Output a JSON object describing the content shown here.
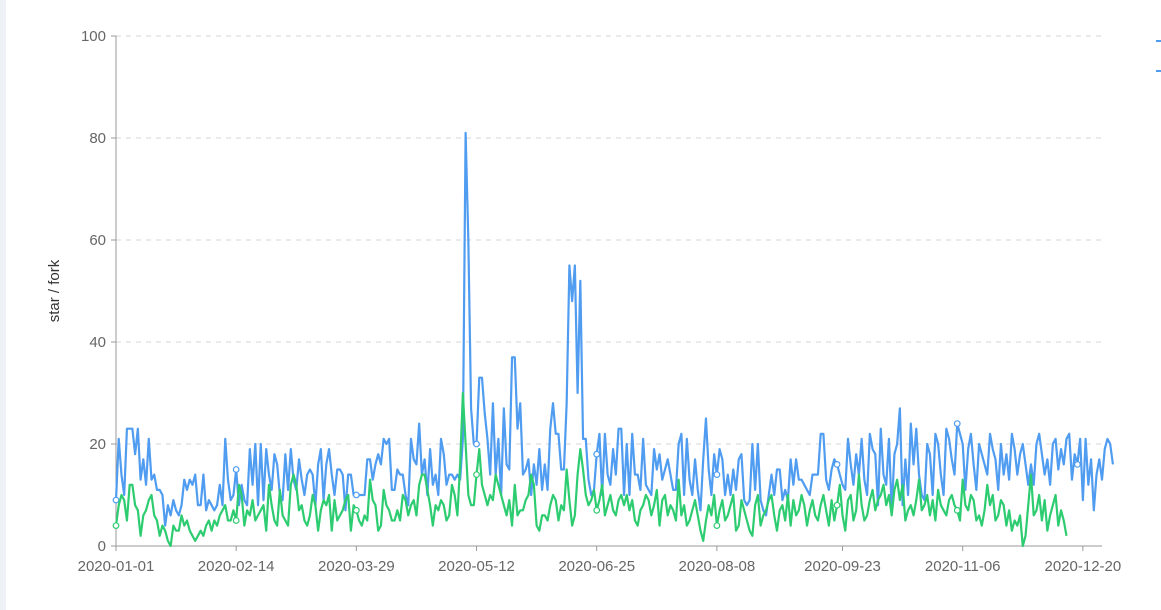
{
  "chart_data": {
    "type": "line",
    "title": "",
    "xlabel": "",
    "ylabel": "star / fork",
    "ylim": [
      0,
      100
    ],
    "yticks": [
      0,
      20,
      40,
      60,
      80,
      100
    ],
    "xticks": [
      "2020-01-01",
      "2020-02-14",
      "2020-03-29",
      "2020-05-12",
      "2020-06-25",
      "2020-08-08",
      "2020-09-23",
      "2020-11-06",
      "2020-12-20"
    ],
    "x_start": "2020-01-01",
    "x_end": "2020-12-27",
    "grid": "horizontal-dashed",
    "legend": "top-right",
    "colors": {
      "series1": "#4f9cf0",
      "series2": "#2ecc71"
    },
    "series": [
      {
        "color": "#4f9cf0",
        "values": [
          9,
          21,
          14,
          10,
          23,
          23,
          23,
          18,
          23,
          13,
          17,
          12,
          21,
          13,
          14,
          11,
          11,
          10,
          4,
          8,
          6,
          9,
          7,
          6,
          8,
          13,
          11,
          13,
          12,
          14,
          8,
          8,
          14,
          7,
          9,
          8,
          7,
          8,
          12,
          8,
          21,
          13,
          9,
          10,
          15,
          8,
          12,
          9,
          8,
          19,
          12,
          20,
          8,
          20,
          9,
          19,
          14,
          11,
          18,
          16,
          10,
          9,
          18,
          11,
          19,
          13,
          11,
          17,
          13,
          10,
          14,
          15,
          14,
          8,
          16,
          19,
          9,
          16,
          19,
          14,
          10,
          15,
          15,
          14,
          7,
          14,
          14,
          10,
          10,
          10,
          10,
          10,
          17,
          17,
          13,
          16,
          18,
          16,
          21,
          20,
          21,
          11,
          11,
          15,
          14,
          14,
          10,
          8,
          21,
          17,
          16,
          24,
          14,
          17,
          10,
          19,
          12,
          14,
          10,
          21,
          18,
          12,
          14,
          14,
          13,
          14,
          13,
          21,
          81,
          60,
          27,
          20,
          20,
          33,
          33,
          26,
          21,
          14,
          28,
          14,
          21,
          10,
          27,
          16,
          15,
          37,
          37,
          23,
          28,
          14,
          15,
          17,
          10,
          16,
          12,
          19,
          11,
          16,
          11,
          23,
          28,
          22,
          22,
          15,
          15,
          28,
          55,
          48,
          55,
          30,
          52,
          21,
          21,
          13,
          10,
          11,
          18,
          22,
          10,
          22,
          14,
          12,
          19,
          14,
          23,
          23,
          10,
          20,
          10,
          22,
          14,
          14,
          11,
          21,
          12,
          11,
          10,
          19,
          15,
          18,
          13,
          15,
          17,
          14,
          11,
          11,
          20,
          22,
          10,
          21,
          13,
          10,
          17,
          11,
          7,
          17,
          25,
          15,
          10,
          18,
          14,
          19,
          17,
          10,
          14,
          10,
          15,
          11,
          17,
          18,
          9,
          8,
          9,
          20,
          11,
          20,
          9,
          7,
          6,
          10,
          14,
          10,
          15,
          15,
          9,
          11,
          9,
          17,
          12,
          17,
          13,
          13,
          12,
          11,
          10,
          14,
          14,
          14,
          22,
          22,
          13,
          11,
          15,
          17,
          16,
          14,
          12,
          11,
          21,
          16,
          12,
          18,
          14,
          21,
          13,
          10,
          22,
          19,
          18,
          8,
          23,
          14,
          12,
          21,
          7,
          18,
          20,
          27,
          8,
          17,
          10,
          24,
          16,
          23,
          14,
          10,
          9,
          20,
          18,
          10,
          22,
          20,
          14,
          10,
          23,
          21,
          17,
          14,
          24,
          22,
          20,
          11,
          19,
          22,
          16,
          11,
          20,
          18,
          16,
          14,
          22,
          19,
          17,
          11,
          20,
          14,
          18,
          13,
          22,
          19,
          14,
          18,
          20,
          16,
          12,
          16,
          12,
          20,
          22,
          18,
          14,
          17,
          12,
          20,
          21,
          15,
          19,
          16,
          21,
          22,
          13,
          18,
          16,
          21,
          9,
          21,
          12,
          17,
          7,
          14,
          17,
          13,
          19,
          21,
          20,
          16
        ],
        "start": "2020-01-01"
      },
      {
        "color": "#2ecc71",
        "values": [
          4,
          8,
          10,
          9,
          5,
          12,
          12,
          8,
          7,
          2,
          6,
          7,
          9,
          10,
          6,
          5,
          2,
          4,
          3,
          1,
          0,
          4,
          3,
          3,
          6,
          4,
          5,
          3,
          2,
          1,
          2,
          3,
          2,
          4,
          5,
          3,
          5,
          4,
          6,
          7,
          8,
          5,
          5,
          7,
          5,
          12,
          10,
          4,
          7,
          6,
          9,
          5,
          6,
          7,
          8,
          3,
          12,
          8,
          5,
          4,
          11,
          6,
          5,
          4,
          12,
          14,
          12,
          7,
          8,
          5,
          4,
          6,
          10,
          8,
          3,
          7,
          9,
          8,
          10,
          3,
          9,
          5,
          6,
          7,
          9,
          10,
          3,
          8,
          7,
          5,
          4,
          6,
          5,
          13,
          9,
          8,
          3,
          4,
          11,
          8,
          7,
          5,
          5,
          7,
          5,
          10,
          9,
          6,
          8,
          9,
          6,
          12,
          14,
          14,
          11,
          8,
          4,
          8,
          7,
          9,
          8,
          5,
          6,
          12,
          10,
          6,
          16,
          30,
          20,
          10,
          8,
          8,
          14,
          19,
          12,
          10,
          8,
          10,
          9,
          14,
          12,
          10,
          8,
          6,
          9,
          4,
          12,
          6,
          7,
          7,
          9,
          10,
          14,
          12,
          4,
          3,
          6,
          6,
          5,
          8,
          10,
          9,
          5,
          8,
          7,
          15,
          9,
          4,
          6,
          14,
          19,
          15,
          10,
          8,
          9,
          11,
          7,
          9,
          12,
          6,
          8,
          10,
          7,
          6,
          9,
          10,
          8,
          10,
          7,
          9,
          5,
          4,
          7,
          8,
          10,
          9,
          6,
          8,
          11,
          4,
          9,
          10,
          6,
          8,
          7,
          5,
          13,
          6,
          8,
          4,
          5,
          7,
          9,
          6,
          3,
          1,
          5,
          8,
          6,
          10,
          4,
          7,
          9,
          5,
          6,
          8,
          10,
          3,
          4,
          9,
          7,
          5,
          3,
          2,
          8,
          10,
          4,
          6,
          7,
          9,
          10,
          6,
          3,
          7,
          8,
          5,
          10,
          4,
          9,
          6,
          7,
          10,
          8,
          4,
          7,
          9,
          6,
          5,
          8,
          10,
          7,
          4,
          9,
          5,
          8,
          12,
          6,
          3,
          9,
          10,
          5,
          7,
          14,
          8,
          5,
          6,
          9,
          11,
          7,
          9,
          10,
          12,
          8,
          10,
          6,
          11,
          13,
          9,
          12,
          5,
          7,
          8,
          6,
          9,
          13,
          7,
          8,
          10,
          6,
          9,
          5,
          11,
          8,
          7,
          6,
          9,
          10,
          8,
          7,
          5,
          13,
          8,
          7,
          10,
          9,
          5,
          6,
          4,
          7,
          12,
          8,
          10,
          5,
          6,
          9,
          8,
          4,
          7,
          3,
          5,
          4,
          6,
          0,
          2,
          8,
          14,
          6,
          7,
          10,
          5,
          9,
          3,
          6,
          8,
          10,
          4,
          7,
          5,
          2
        ],
        "start": "2020-01-01"
      }
    ]
  }
}
